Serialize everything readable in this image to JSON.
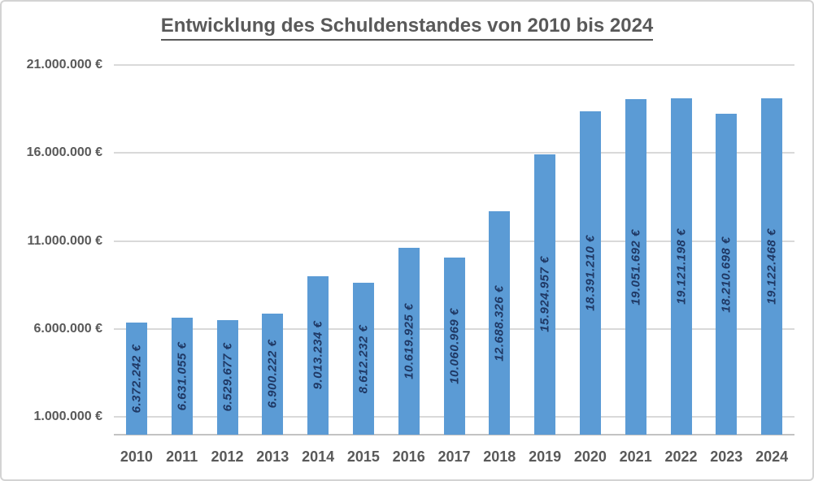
{
  "chart_data": {
    "type": "bar",
    "title": "Entwicklung des Schuldenstandes von 2010 bis 2024",
    "categories": [
      "2010",
      "2011",
      "2012",
      "2013",
      "2014",
      "2015",
      "2016",
      "2017",
      "2018",
      "2019",
      "2020",
      "2021",
      "2022",
      "2023",
      "2024"
    ],
    "values": [
      6372242,
      6631055,
      6529677,
      6900222,
      9013234,
      8612232,
      10619925,
      10060969,
      12688326,
      15924957,
      18391210,
      19051692,
      19121198,
      18210698,
      19122468
    ],
    "value_labels": [
      "6.372.242 €",
      "6.631.055 €",
      "6.529.677 €",
      "6.900.222 €",
      "9.013.234 €",
      "8.612.232 €",
      "10.619.925 €",
      "10.060.969 €",
      "12.688.326 €",
      "15.924.957 €",
      "18.391.210 €",
      "19.051.692 €",
      "19.121.198 €",
      "18.210.698 €",
      "19.122.468 €"
    ],
    "xlabel": "",
    "ylabel": "",
    "ylim": [
      0,
      21000000
    ],
    "grid": true,
    "legend_position": "none",
    "y_axis_ticks": [
      {
        "value": 1000000,
        "label": "1.000.000 €"
      },
      {
        "value": 6000000,
        "label": "6.000.000 €"
      },
      {
        "value": 11000000,
        "label": "11.000.000 €"
      },
      {
        "value": 16000000,
        "label": "16.000.000 €"
      },
      {
        "value": 21000000,
        "label": "21.000.000 €"
      }
    ],
    "colors": {
      "bar": "#5b9bd5",
      "value_label": "#1f3864",
      "axis_text": "#595959",
      "title_text": "#595959",
      "gridline": "#d9d9d9",
      "axis_line": "#c3c3c3",
      "chart_border": "#d3d3d3"
    }
  }
}
